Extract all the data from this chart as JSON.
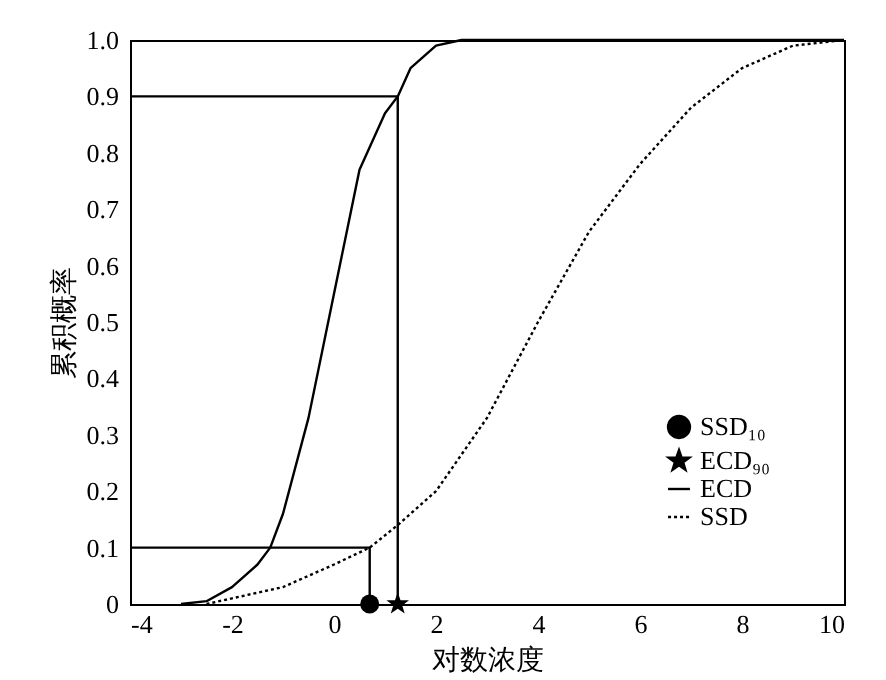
{
  "chart_data": {
    "type": "line",
    "xlabel": "对数浓度",
    "ylabel": "累积概率",
    "xlim": [
      -4,
      10
    ],
    "xticks": [
      -4,
      -2,
      0,
      2,
      4,
      6,
      8,
      10
    ],
    "ylim": [
      0,
      1
    ],
    "yticks": [
      0,
      0.1,
      0.2,
      0.3,
      0.4,
      0.5,
      0.6,
      0.7,
      0.8,
      0.9,
      {
        "value": 1,
        "label": "1.0"
      }
    ],
    "grid": false,
    "legend": "bottom right",
    "series": [
      {
        "color": "#000000",
        "line_style": "solid",
        "x": [
          -4,
          1.25,
          1.25
        ],
        "values": [
          0.9,
          0.9,
          0
        ]
      },
      {
        "color": "#000000",
        "line_style": "solid",
        "x": [
          -4,
          0.7,
          0.7
        ],
        "values": [
          0.1,
          0.1,
          0
        ]
      },
      {
        "name": "SSD₁₀",
        "type": "scatter",
        "marker": "circle",
        "color": "#000000",
        "x": [
          0.7
        ],
        "values": [
          0
        ]
      },
      {
        "name": "ECD₉₀",
        "type": "scatter",
        "marker": "star",
        "color": "#000000",
        "x": [
          1.25
        ],
        "values": [
          0
        ]
      },
      {
        "name": "ECD",
        "line_style": "solid",
        "color": "#000000",
        "x": [
          -3,
          -2.5,
          -2,
          -1.5,
          -1.25,
          -1,
          -0.5,
          0,
          0.5,
          1,
          1.25,
          1.5,
          2,
          2.5,
          3,
          10
        ],
        "values": [
          0,
          0.005,
          0.03,
          0.07,
          0.1,
          0.16,
          0.33,
          0.55,
          0.77,
          0.87,
          0.9,
          0.95,
          0.99,
          1,
          1,
          1
        ]
      },
      {
        "name": "SSD",
        "line_style": "dotted",
        "color": "#000000",
        "x": [
          -2.5,
          -2,
          -1,
          0,
          0.7,
          1.25,
          2,
          3,
          4,
          5,
          6,
          7,
          8,
          9,
          10
        ],
        "values": [
          0,
          0.01,
          0.03,
          0.07,
          0.1,
          0.14,
          0.2,
          0.33,
          0.5,
          0.66,
          0.78,
          0.88,
          0.95,
          0.99,
          1
        ]
      }
    ]
  }
}
